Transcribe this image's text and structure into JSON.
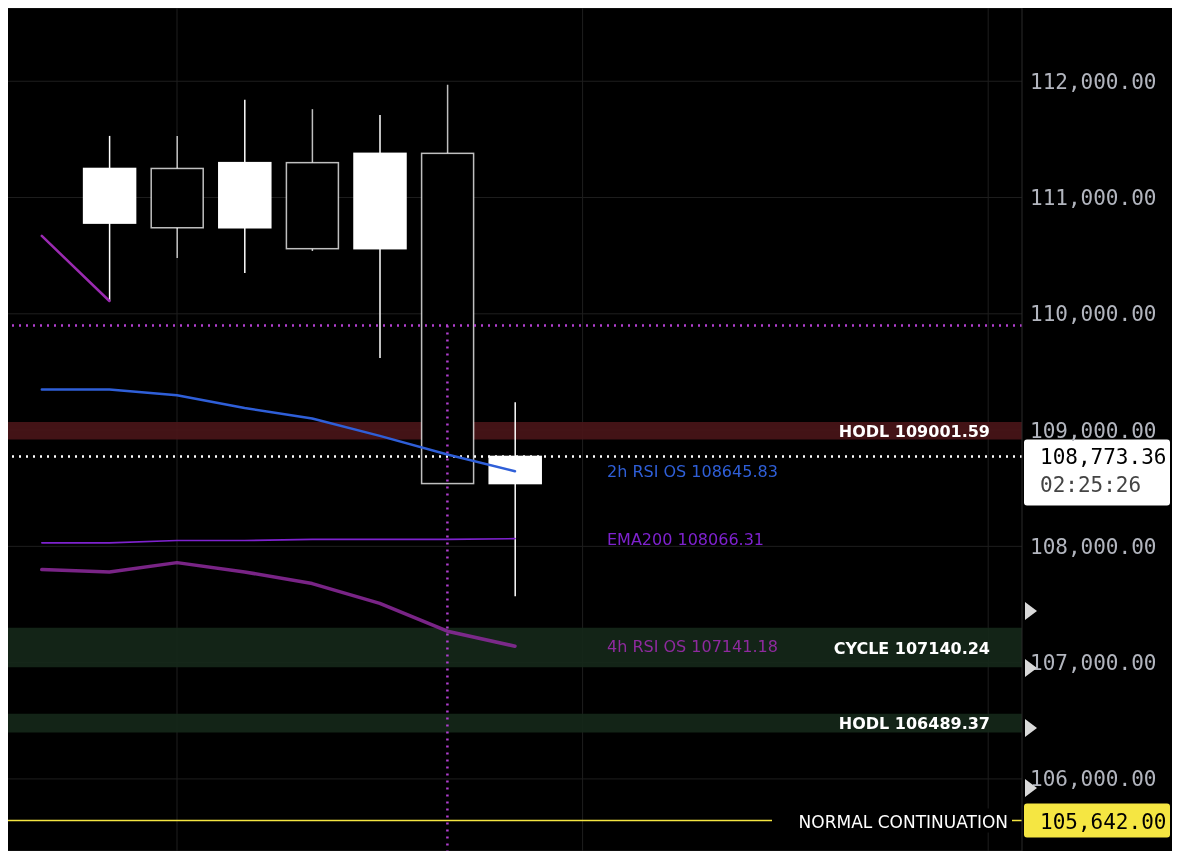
{
  "chart_data": {
    "type": "candlestick",
    "categories": [
      null,
      null,
      null,
      null,
      null,
      null,
      null,
      null,
      null,
      null,
      null,
      null,
      null,
      null,
      null
    ],
    "ohlc": [
      null,
      [
        110780,
        111530,
        110110,
        111250
      ],
      [
        111250,
        111530,
        110480,
        110740
      ],
      [
        110740,
        111840,
        110350,
        111300
      ],
      [
        111300,
        111760,
        110540,
        110560
      ],
      [
        110560,
        111710,
        109620,
        111380
      ],
      [
        111380,
        111970,
        108540,
        108540
      ],
      [
        108540,
        109240,
        107570,
        108773.36
      ],
      null,
      null,
      null,
      null,
      null,
      null,
      null
    ],
    "color": "#ffffff",
    "series": [
      {
        "type": "line",
        "color": "#9a2ab0",
        "values": [
          110670,
          110110,
          null,
          null,
          null,
          null,
          null,
          null,
          null,
          null,
          null,
          null,
          null,
          null,
          null
        ]
      },
      {
        "type": "line",
        "name": "2h RSI OS 108645.83",
        "color": "#2f5fd8",
        "values": [
          109350,
          109350,
          109300,
          109190,
          109100,
          108950,
          108790,
          108645.83,
          null,
          null,
          null,
          null,
          null,
          null,
          null
        ]
      },
      {
        "type": "line",
        "name": "EMA200 108066.31",
        "color": "#7e22ce",
        "values": [
          108030,
          108030,
          108050,
          108050,
          108060,
          108060,
          108060,
          108066.31,
          null,
          null,
          null,
          null,
          null,
          null,
          null
        ]
      },
      {
        "type": "line",
        "name": "4h RSI OS 107141.18",
        "color": "#8e2a9e",
        "values": [
          107800,
          107780,
          107860,
          107780,
          107680,
          107510,
          107270,
          107141.18,
          null,
          null,
          null,
          null,
          null,
          null,
          null
        ]
      }
    ],
    "ylim": [
      105380,
      112630
    ],
    "yticks": [
      {
        "value": 106000,
        "label": "106,000.00"
      },
      {
        "value": 107000,
        "label": "107,000.00"
      },
      {
        "value": 108000,
        "label": "108,000.00"
      },
      {
        "value": 109000,
        "label": "109,000.00"
      },
      {
        "value": 110000,
        "label": "110,000.00"
      },
      {
        "value": 111000,
        "label": "111,000.00"
      },
      {
        "value": 112000,
        "label": "112,000.00"
      }
    ],
    "tick_labels": "y",
    "grid": true,
    "ref_lines": [
      {
        "axis": "y",
        "value": 109900,
        "color": "#b23fd0",
        "line_style": "dotted"
      },
      {
        "axis": "y",
        "value": 108773.36,
        "label": "108,773.36",
        "color": "#ffffff",
        "line_style": "dotted"
      },
      {
        "axis": "y",
        "value": 105642,
        "label": "105,642.00",
        "color": "#f5e642",
        "line_style": "solid"
      }
    ],
    "bands": [
      {
        "axis": "y",
        "from": 108920,
        "to": 109070,
        "label": "HODL 109001.59",
        "color": "#4a1518"
      },
      {
        "axis": "y",
        "from": 106960,
        "to": 107300,
        "label": "CYCLE 107140.24",
        "color": "#15281a"
      },
      {
        "axis": "y",
        "from": 106400,
        "to": 106560,
        "label": "HODL 106489.37",
        "color": "#15281a"
      }
    ],
    "annotations": [
      "02:25:26",
      {
        "text": "NORMAL CONTINUATION",
        "y": 105642
      }
    ]
  }
}
